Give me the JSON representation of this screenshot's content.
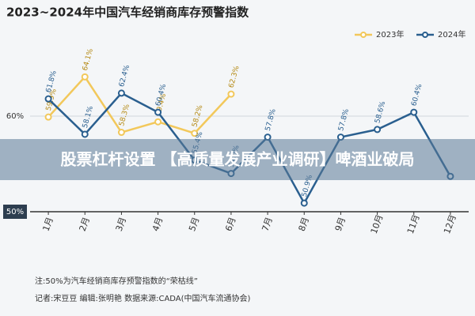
{
  "chart_data": {
    "type": "line",
    "title": "2023~2024年中国汽车经销商库存预警指数",
    "categories": [
      "1月",
      "2月",
      "3月",
      "4月",
      "5月",
      "6月",
      "7月",
      "8月",
      "9月",
      "10月",
      "11月",
      "12月"
    ],
    "series": [
      {
        "name": "2023年",
        "color": "#f2c85b",
        "values": [
          59.9,
          64.1,
          58.3,
          59.4,
          58.2,
          62.3,
          null,
          null,
          null,
          null,
          null,
          null
        ],
        "value_labels": [
          "59.9%",
          "64.1%",
          "58.3%",
          "59.4%",
          "58.2%",
          "62.3%",
          null,
          null,
          null,
          null,
          null,
          null
        ]
      },
      {
        "name": "2024年",
        "color": "#2a5f8f",
        "values": [
          61.8,
          58.1,
          62.4,
          60.4,
          55.4,
          54.0,
          57.8,
          50.9,
          57.8,
          58.6,
          60.4,
          53.7
        ],
        "value_labels": [
          "61.8%",
          "58.1%",
          "62.4%",
          "60.4%",
          "55.4%",
          "54.0%",
          "57.8%",
          "50.9%",
          "57.8%",
          "58.6%",
          "60.4%",
          null
        ]
      }
    ],
    "ylim": [
      50,
      69
    ],
    "yticks": [
      {
        "value": 50,
        "label": "50%"
      },
      {
        "value": 60,
        "label": "60%"
      }
    ],
    "legend": "top-right",
    "notes": [
      "注:50%为汽车经销商库存预警指数的“荣枯线”",
      "记者:宋豆豆   编辑:张明艳   数据来源:CADA(中国汽车流通协会)"
    ]
  },
  "overlay_banner": "股票杠杆设置 【高质量发展产业调研】啤酒业破局"
}
